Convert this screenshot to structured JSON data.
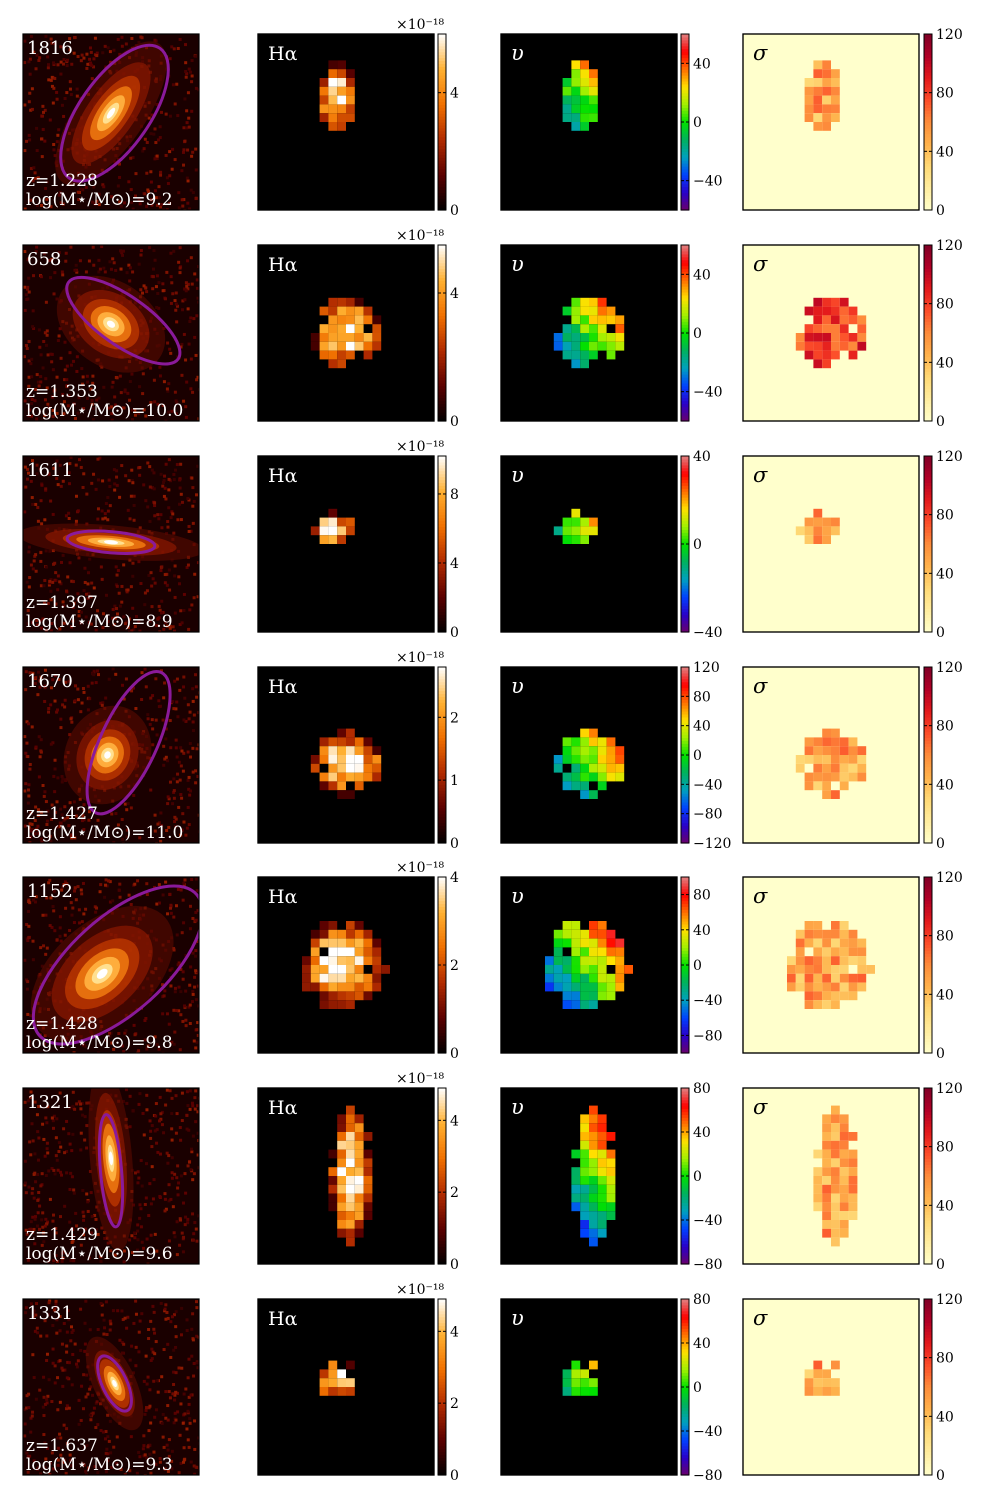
{
  "figure": {
    "heading_hst": "",
    "heading_ha": "Hα",
    "heading_v": "υ",
    "heading_sigma": "σ",
    "mult_label": "×10⁻¹⁸"
  },
  "colors": {
    "frame": "#000000",
    "ellipse": "#8a1a9a",
    "sigma_bg": "#ffffcc",
    "ha_cmap": [
      "#000000",
      "#5a0000",
      "#b02a00",
      "#f07000",
      "#ffb030",
      "#ffffff"
    ],
    "v_cmap": [
      "#6a006a",
      "#2a00c8",
      "#0040ff",
      "#00a0c0",
      "#00b060",
      "#00e000",
      "#a0f000",
      "#ffe000",
      "#ff7000",
      "#ff0000",
      "#e08080"
    ],
    "sigma_cmap": [
      "#ffffcc",
      "#ffeda0",
      "#fed976",
      "#feb24c",
      "#fd8d3c",
      "#fc4e2a",
      "#e31a1c",
      "#b10026",
      "#800026"
    ]
  },
  "chart_data": [
    {
      "type": "heatmap",
      "id": "1816",
      "z_label": "z=1.228",
      "mass_label": "log(M⋆/M⊙)=9.2",
      "ha_ticks": [
        "0",
        "4"
      ],
      "ha_range": [
        0,
        6
      ],
      "v_ticks": [
        "−40",
        "0",
        "40"
      ],
      "v_range": [
        -60,
        60
      ],
      "sigma_ticks": [
        "0",
        "40",
        "80",
        "120"
      ],
      "sigma_range": [
        0,
        120
      ]
    },
    {
      "type": "heatmap",
      "id": "658",
      "z_label": "z=1.353",
      "mass_label": "log(M⋆/M⊙)=10.0",
      "ha_ticks": [
        "0",
        "4"
      ],
      "ha_range": [
        0,
        5.5
      ],
      "v_ticks": [
        "−40",
        "0",
        "40"
      ],
      "v_range": [
        -60,
        60
      ],
      "sigma_ticks": [
        "0",
        "40",
        "80",
        "120"
      ],
      "sigma_range": [
        0,
        120
      ]
    },
    {
      "type": "heatmap",
      "id": "1611",
      "z_label": "z=1.397",
      "mass_label": "log(M⋆/M⊙)=8.9",
      "ha_ticks": [
        "0",
        "4",
        "8"
      ],
      "ha_range": [
        0,
        10.2
      ],
      "v_ticks": [
        "−40",
        "0",
        "40"
      ],
      "v_range": [
        -40,
        40
      ],
      "sigma_ticks": [
        "0",
        "40",
        "80",
        "120"
      ],
      "sigma_range": [
        0,
        120
      ]
    },
    {
      "type": "heatmap",
      "id": "1670",
      "z_label": "z=1.427",
      "mass_label": "log(M⋆/M⊙)=11.0",
      "ha_ticks": [
        "0",
        "1",
        "2"
      ],
      "ha_range": [
        0,
        2.8
      ],
      "v_ticks": [
        "−120",
        "−80",
        "−40",
        "0",
        "40",
        "80",
        "120"
      ],
      "v_range": [
        -120,
        120
      ],
      "sigma_ticks": [
        "0",
        "40",
        "80",
        "120"
      ],
      "sigma_range": [
        0,
        120
      ]
    },
    {
      "type": "heatmap",
      "id": "1152",
      "z_label": "z=1.428",
      "mass_label": "log(M⋆/M⊙)=9.8",
      "ha_ticks": [
        "0",
        "2",
        "4"
      ],
      "ha_range": [
        0,
        4
      ],
      "v_ticks": [
        "−80",
        "−40",
        "0",
        "40",
        "80"
      ],
      "v_range": [
        -100,
        100
      ],
      "sigma_ticks": [
        "0",
        "40",
        "80",
        "120"
      ],
      "sigma_range": [
        0,
        120
      ]
    },
    {
      "type": "heatmap",
      "id": "1321",
      "z_label": "z=1.429",
      "mass_label": "log(M⋆/M⊙)=9.6",
      "ha_ticks": [
        "0",
        "2",
        "4"
      ],
      "ha_range": [
        0,
        4.9
      ],
      "v_ticks": [
        "−80",
        "−40",
        "0",
        "40",
        "80"
      ],
      "v_range": [
        -80,
        80
      ],
      "sigma_ticks": [
        "0",
        "40",
        "80",
        "120"
      ],
      "sigma_range": [
        0,
        120
      ]
    },
    {
      "type": "heatmap",
      "id": "1331",
      "z_label": "z=1.637",
      "mass_label": "log(M⋆/M⊙)=9.3",
      "ha_ticks": [
        "0",
        "2",
        "4"
      ],
      "ha_range": [
        0,
        4.9
      ],
      "v_ticks": [
        "−80",
        "−40",
        "0",
        "40",
        "80"
      ],
      "v_range": [
        -80,
        80
      ],
      "sigma_ticks": [
        "0",
        "40",
        "80",
        "120"
      ],
      "sigma_range": [
        0,
        120
      ]
    }
  ]
}
